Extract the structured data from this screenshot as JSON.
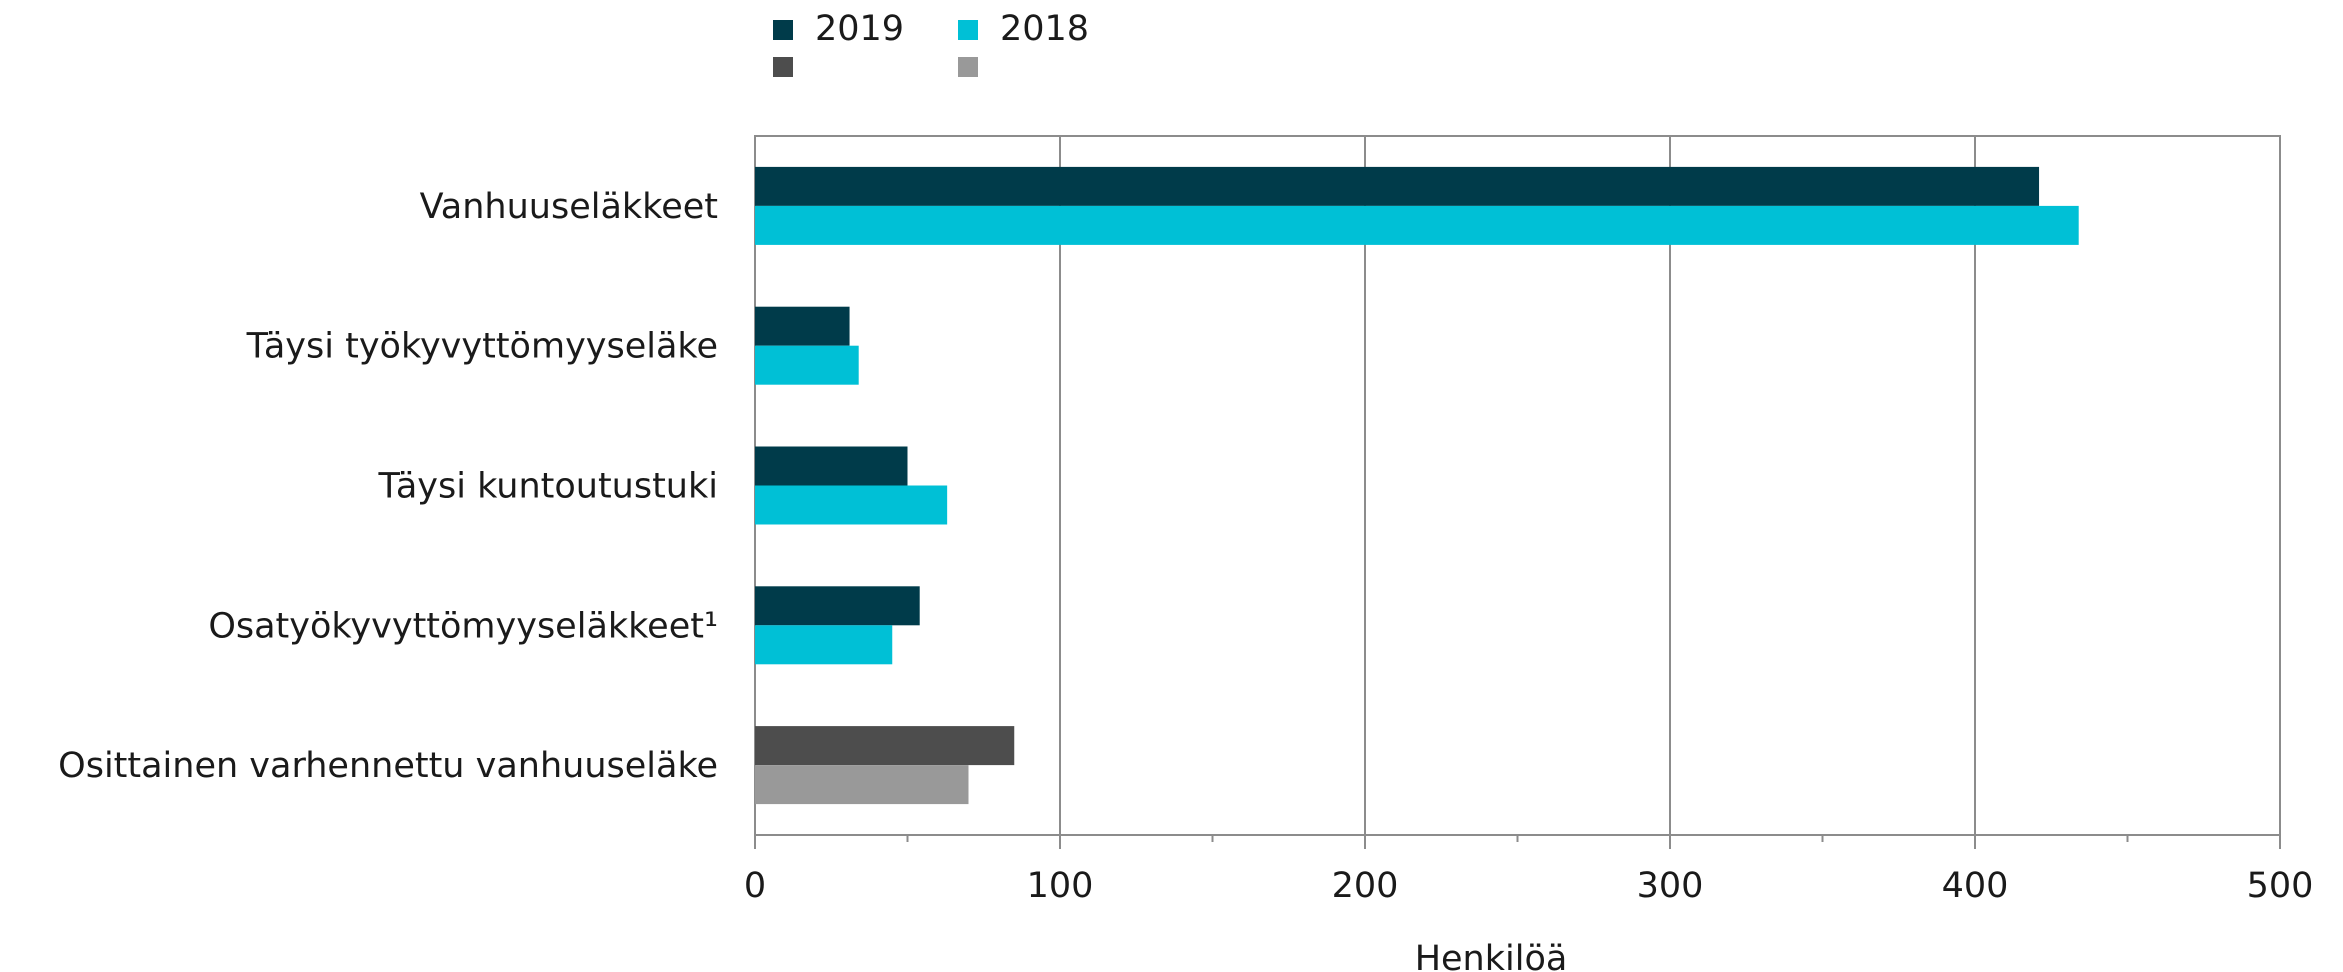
{
  "chart_data": {
    "type": "bar",
    "orientation": "horizontal",
    "categories": [
      "Vanhuuseläkkeet",
      "Täysi työkyvyttömyyseläke",
      "Täysi kuntoutustuki",
      "Osatyökyvyttömyyseläkkeet¹",
      "Osittainen varhennettu vanhuuseläke"
    ],
    "series": [
      {
        "name": "2019",
        "color": "#003b4a",
        "values": [
          421,
          31,
          50,
          54,
          85
        ],
        "point_colors": [
          "#003b4a",
          "#003b4a",
          "#003b4a",
          "#003b4a",
          "#4d4d4d"
        ]
      },
      {
        "name": "2018",
        "color": "#00c0d6",
        "values": [
          434,
          34,
          63,
          45,
          70
        ],
        "point_colors": [
          "#00c0d6",
          "#00c0d6",
          "#00c0d6",
          "#00c0d6",
          "#999999"
        ]
      }
    ],
    "extra_legend_swatches": [
      "#4d4d4d",
      "#999999"
    ],
    "xlim": [
      0,
      500
    ],
    "major_ticks": [
      0,
      100,
      200,
      300,
      400,
      500
    ],
    "minor_ticks": [
      50,
      150,
      250,
      350,
      450
    ],
    "xlabel": "Henkilöä",
    "ylabel": "",
    "title": "",
    "grid": "vertical major",
    "legend_position": "top"
  }
}
